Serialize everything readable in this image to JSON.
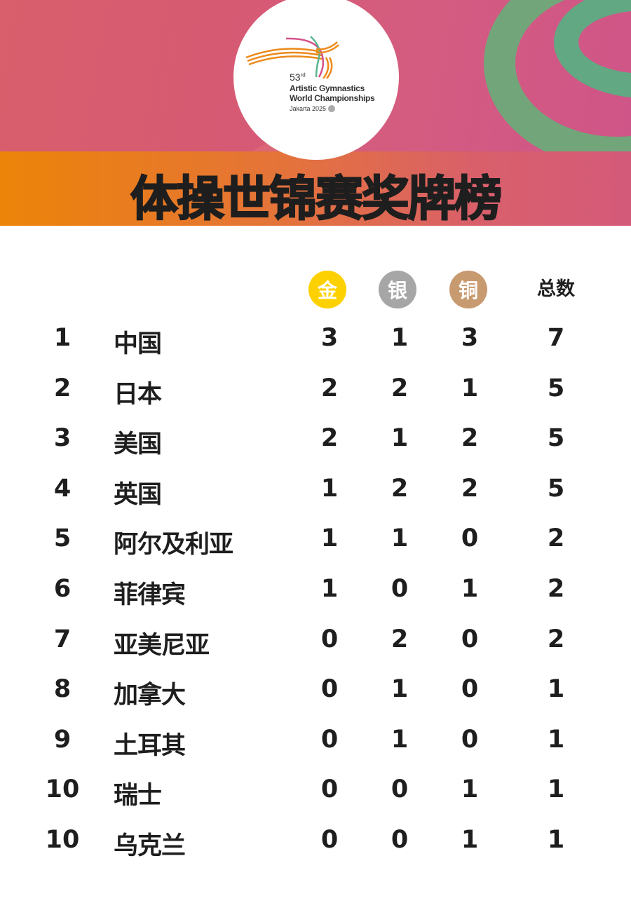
{
  "logo": {
    "edition": "53",
    "edition_suffix": "rd",
    "line1": "Artistic Gymnastics",
    "line2": "World Championships",
    "city": "Jakarta 2025"
  },
  "title": "体操世锦赛奖牌榜",
  "headers": {
    "gold": "金",
    "silver": "银",
    "bronze": "铜",
    "total": "总数"
  },
  "colors": {
    "gold": "#fdd100",
    "silver": "#a6a6a6",
    "bronze": "#c89a6f",
    "band_start": "#ec8408",
    "band_end": "#d45a7a"
  },
  "rows": [
    {
      "rank": "1",
      "country": "中国",
      "gold": "3",
      "silver": "1",
      "bronze": "3",
      "total": "7"
    },
    {
      "rank": "2",
      "country": "日本",
      "gold": "2",
      "silver": "2",
      "bronze": "1",
      "total": "5"
    },
    {
      "rank": "3",
      "country": "美国",
      "gold": "2",
      "silver": "1",
      "bronze": "2",
      "total": "5"
    },
    {
      "rank": "4",
      "country": "英国",
      "gold": "1",
      "silver": "2",
      "bronze": "2",
      "total": "5"
    },
    {
      "rank": "5",
      "country": "阿尔及利亚",
      "gold": "1",
      "silver": "1",
      "bronze": "0",
      "total": "2"
    },
    {
      "rank": "6",
      "country": "菲律宾",
      "gold": "1",
      "silver": "0",
      "bronze": "1",
      "total": "2"
    },
    {
      "rank": "7",
      "country": "亚美尼亚",
      "gold": "0",
      "silver": "2",
      "bronze": "0",
      "total": "2"
    },
    {
      "rank": "8",
      "country": "加拿大",
      "gold": "0",
      "silver": "1",
      "bronze": "0",
      "total": "1"
    },
    {
      "rank": "9",
      "country": "土耳其",
      "gold": "0",
      "silver": "1",
      "bronze": "0",
      "total": "1"
    },
    {
      "rank": "10",
      "country": "瑞士",
      "gold": "0",
      "silver": "0",
      "bronze": "1",
      "total": "1"
    },
    {
      "rank": "10",
      "country": "乌克兰",
      "gold": "0",
      "silver": "0",
      "bronze": "1",
      "total": "1"
    }
  ]
}
